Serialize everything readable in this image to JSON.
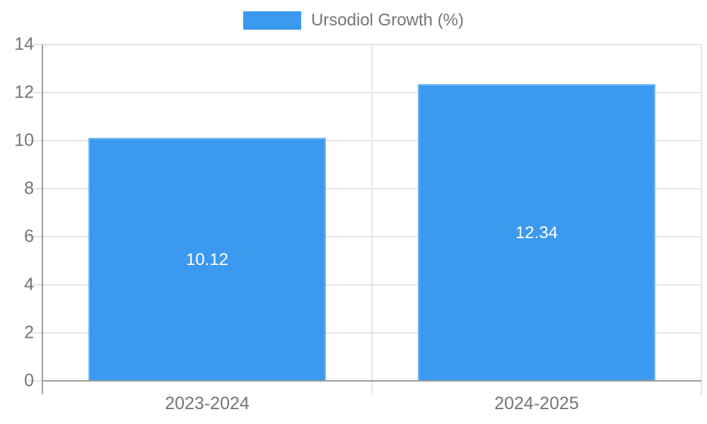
{
  "chart_data": {
    "type": "bar",
    "title": "",
    "legend": "Ursodiol Growth (%)",
    "legend_position": "top",
    "categories": [
      "2023-2024",
      "2024-2025"
    ],
    "series": [
      {
        "name": "Ursodiol Growth (%)",
        "values": [
          10.12,
          12.34
        ]
      }
    ],
    "value_labels": [
      "10.12",
      "12.34"
    ],
    "xlabel": "",
    "ylabel": "",
    "ylim": [
      0,
      14
    ],
    "yticks": [
      0,
      2,
      4,
      6,
      8,
      10,
      12,
      14
    ],
    "grid": true,
    "bar_width_fraction": 0.72
  },
  "colors": {
    "background": "#ffffff",
    "bar": "#3b99ef",
    "bar_border": "#74b6f2",
    "grid": "#e6e6e6",
    "axis": "#9e9e9e",
    "tick_text": "#757575",
    "bar_label": "#ffffff"
  }
}
